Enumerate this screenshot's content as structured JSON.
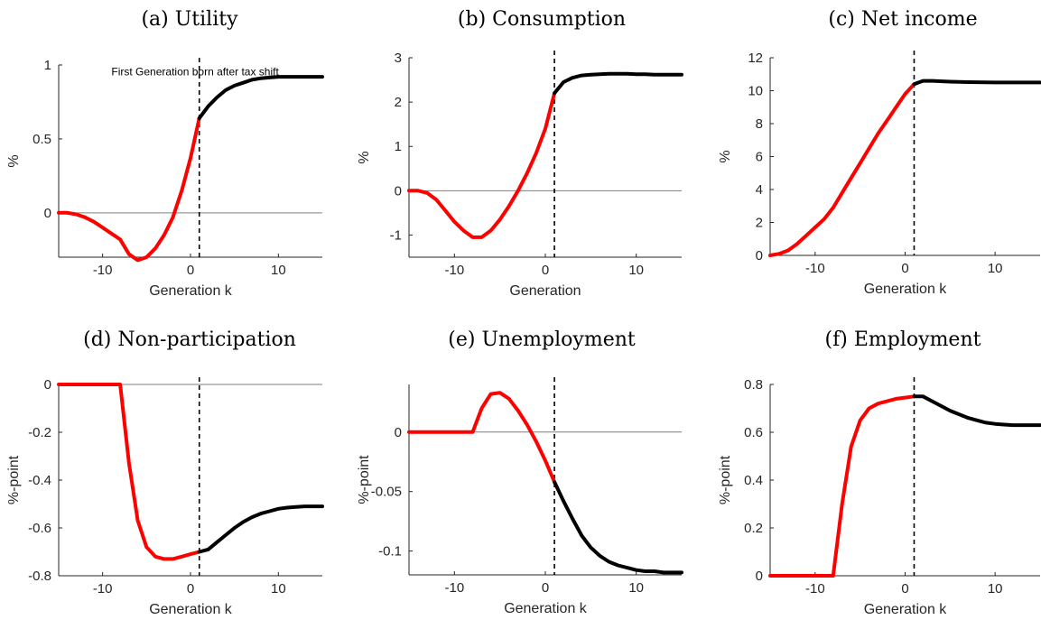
{
  "chart_data": [
    {
      "type": "line",
      "title": "(a) Utility",
      "xlabel": "Generation k",
      "ylabel": "%",
      "xlim": [
        -15,
        15
      ],
      "ylim": [
        -0.3,
        1
      ],
      "xticks": [
        -10,
        0,
        10
      ],
      "xtick_labels": [
        "-10",
        "0",
        "10"
      ],
      "yticks": [
        0,
        0.5,
        1
      ],
      "ytick_labels": [
        "0",
        "0.5",
        "1"
      ],
      "zero_line": true,
      "vline_x": 1,
      "annotation": {
        "text": "First Generation born after tax shift",
        "x": -9,
        "y": 0.93
      },
      "series": [
        {
          "color": "#ff0000",
          "x": [
            -15,
            -14,
            -13,
            -12,
            -11,
            -10,
            -9,
            -8,
            -7,
            -6,
            -5,
            -4,
            -3,
            -2,
            -1,
            0,
            1
          ],
          "y": [
            0,
            0,
            -0.01,
            -0.03,
            -0.06,
            -0.1,
            -0.14,
            -0.18,
            -0.28,
            -0.32,
            -0.3,
            -0.24,
            -0.15,
            -0.03,
            0.15,
            0.37,
            0.64
          ]
        },
        {
          "color": "#000000",
          "x": [
            1,
            2,
            3,
            4,
            5,
            6,
            7,
            8,
            9,
            10,
            11,
            12,
            13,
            14,
            15
          ],
          "y": [
            0.64,
            0.72,
            0.78,
            0.83,
            0.86,
            0.88,
            0.9,
            0.91,
            0.915,
            0.92,
            0.92,
            0.92,
            0.92,
            0.92,
            0.92
          ]
        }
      ]
    },
    {
      "type": "line",
      "title": "(b) Consumption",
      "xlabel": "Generation",
      "ylabel": "%",
      "xlim": [
        -15,
        15
      ],
      "ylim": [
        -1.5,
        3
      ],
      "xticks": [
        -10,
        0,
        10
      ],
      "xtick_labels": [
        "-10",
        "0",
        "10"
      ],
      "yticks": [
        -1,
        0,
        1,
        2,
        3
      ],
      "ytick_labels": [
        "-1",
        "0",
        "1",
        "2",
        "3"
      ],
      "zero_line": true,
      "vline_x": 1,
      "series": [
        {
          "color": "#ff0000",
          "x": [
            -15,
            -14,
            -13,
            -12,
            -11,
            -10,
            -9,
            -8,
            -7,
            -6,
            -5,
            -4,
            -3,
            -2,
            -1,
            0,
            1
          ],
          "y": [
            0,
            0,
            -0.05,
            -0.2,
            -0.45,
            -0.7,
            -0.9,
            -1.05,
            -1.05,
            -0.9,
            -0.65,
            -0.35,
            0,
            0.4,
            0.85,
            1.4,
            2.2
          ]
        },
        {
          "color": "#000000",
          "x": [
            1,
            2,
            3,
            4,
            5,
            6,
            7,
            8,
            9,
            10,
            11,
            12,
            13,
            14,
            15
          ],
          "y": [
            2.2,
            2.45,
            2.55,
            2.6,
            2.62,
            2.63,
            2.64,
            2.64,
            2.64,
            2.63,
            2.63,
            2.62,
            2.62,
            2.62,
            2.62
          ]
        }
      ]
    },
    {
      "type": "line",
      "title": "(c) Net income",
      "xlabel": "Generation k",
      "ylabel": "%",
      "xlim": [
        -15,
        15
      ],
      "ylim": [
        0,
        12
      ],
      "xticks": [
        -10,
        0,
        10
      ],
      "xtick_labels": [
        "-10",
        "0",
        "10"
      ],
      "yticks": [
        0,
        2,
        4,
        6,
        8,
        10,
        12
      ],
      "ytick_labels": [
        "0",
        "2",
        "4",
        "6",
        "8",
        "10",
        "12"
      ],
      "zero_line": false,
      "vline_x": 1,
      "series": [
        {
          "color": "#ff0000",
          "x": [
            -15,
            -14,
            -13,
            -12,
            -11,
            -10,
            -9,
            -8,
            -7,
            -6,
            -5,
            -4,
            -3,
            -2,
            -1,
            0,
            1
          ],
          "y": [
            0,
            0.1,
            0.3,
            0.7,
            1.2,
            1.7,
            2.2,
            2.9,
            3.8,
            4.7,
            5.6,
            6.5,
            7.4,
            8.2,
            9.0,
            9.8,
            10.4
          ]
        },
        {
          "color": "#000000",
          "x": [
            1,
            2,
            3,
            5,
            7,
            10,
            13,
            15
          ],
          "y": [
            10.4,
            10.6,
            10.6,
            10.55,
            10.52,
            10.5,
            10.5,
            10.5
          ]
        }
      ]
    },
    {
      "type": "line",
      "title": "(d) Non-participation",
      "xlabel": "Generation k",
      "ylabel": "%-point",
      "xlim": [
        -15,
        15
      ],
      "ylim": [
        -0.8,
        0
      ],
      "xticks": [
        -10,
        0,
        10
      ],
      "xtick_labels": [
        "-10",
        "0",
        "10"
      ],
      "yticks": [
        -0.8,
        -0.6,
        -0.4,
        -0.2,
        0
      ],
      "ytick_labels": [
        "-0.8",
        "-0.6",
        "-0.4",
        "-0.2",
        "0"
      ],
      "zero_line": true,
      "vline_x": 1,
      "series": [
        {
          "color": "#ff0000",
          "x": [
            -15,
            -14,
            -13,
            -12,
            -11,
            -10,
            -9,
            -8,
            -7,
            -6,
            -5,
            -4,
            -3,
            -2,
            -1,
            0,
            1
          ],
          "y": [
            0,
            0,
            0,
            0,
            0,
            0,
            0,
            0,
            -0.33,
            -0.57,
            -0.68,
            -0.72,
            -0.73,
            -0.73,
            -0.72,
            -0.71,
            -0.7
          ]
        },
        {
          "color": "#000000",
          "x": [
            1,
            2,
            3,
            4,
            5,
            6,
            7,
            8,
            9,
            10,
            11,
            12,
            13,
            14,
            15
          ],
          "y": [
            -0.7,
            -0.69,
            -0.66,
            -0.63,
            -0.6,
            -0.575,
            -0.555,
            -0.54,
            -0.53,
            -0.52,
            -0.515,
            -0.512,
            -0.51,
            -0.51,
            -0.51
          ]
        }
      ]
    },
    {
      "type": "line",
      "title": "(e) Unemployment",
      "xlabel": "Generation k",
      "ylabel": "%-point",
      "xlim": [
        -15,
        15
      ],
      "ylim": [
        -0.12,
        0.04
      ],
      "xticks": [
        -10,
        0,
        10
      ],
      "xtick_labels": [
        "-10",
        "0",
        "10"
      ],
      "yticks": [
        -0.1,
        -0.05,
        0
      ],
      "ytick_labels": [
        "-0.1",
        "-0.05",
        "0"
      ],
      "zero_line": true,
      "vline_x": 1,
      "series": [
        {
          "color": "#ff0000",
          "x": [
            -15,
            -14,
            -13,
            -12,
            -11,
            -10,
            -9,
            -8,
            -7,
            -6,
            -5,
            -4,
            -3,
            -2,
            -1,
            0,
            1
          ],
          "y": [
            0,
            0,
            0,
            0,
            0,
            0,
            0,
            0,
            0.02,
            0.032,
            0.033,
            0.028,
            0.018,
            0.006,
            -0.008,
            -0.024,
            -0.042
          ]
        },
        {
          "color": "#000000",
          "x": [
            1,
            2,
            3,
            4,
            5,
            6,
            7,
            8,
            9,
            10,
            11,
            12,
            13,
            14,
            15
          ],
          "y": [
            -0.042,
            -0.058,
            -0.073,
            -0.087,
            -0.097,
            -0.104,
            -0.109,
            -0.112,
            -0.114,
            -0.116,
            -0.117,
            -0.117,
            -0.118,
            -0.118,
            -0.118
          ]
        }
      ]
    },
    {
      "type": "line",
      "title": "(f) Employment",
      "xlabel": "Generation k",
      "ylabel": "%-point",
      "xlim": [
        -15,
        15
      ],
      "ylim": [
        0,
        0.8
      ],
      "xticks": [
        -10,
        0,
        10
      ],
      "xtick_labels": [
        "-10",
        "0",
        "10"
      ],
      "yticks": [
        0,
        0.2,
        0.4,
        0.6,
        0.8
      ],
      "ytick_labels": [
        "0",
        "0.2",
        "0.4",
        "0.6",
        "0.8"
      ],
      "zero_line": false,
      "vline_x": 1,
      "series": [
        {
          "color": "#ff0000",
          "x": [
            -15,
            -14,
            -13,
            -12,
            -11,
            -10,
            -9,
            -8,
            -7,
            -6,
            -5,
            -4,
            -3,
            -2,
            -1,
            0,
            1
          ],
          "y": [
            0,
            0,
            0,
            0,
            0,
            0,
            0,
            0,
            0.3,
            0.54,
            0.65,
            0.7,
            0.72,
            0.73,
            0.74,
            0.745,
            0.75
          ]
        },
        {
          "color": "#000000",
          "x": [
            1,
            2,
            3,
            4,
            5,
            6,
            7,
            8,
            9,
            10,
            11,
            12,
            13,
            14,
            15
          ],
          "y": [
            0.75,
            0.75,
            0.73,
            0.71,
            0.69,
            0.675,
            0.66,
            0.65,
            0.64,
            0.635,
            0.632,
            0.63,
            0.63,
            0.63,
            0.63
          ]
        }
      ]
    }
  ]
}
